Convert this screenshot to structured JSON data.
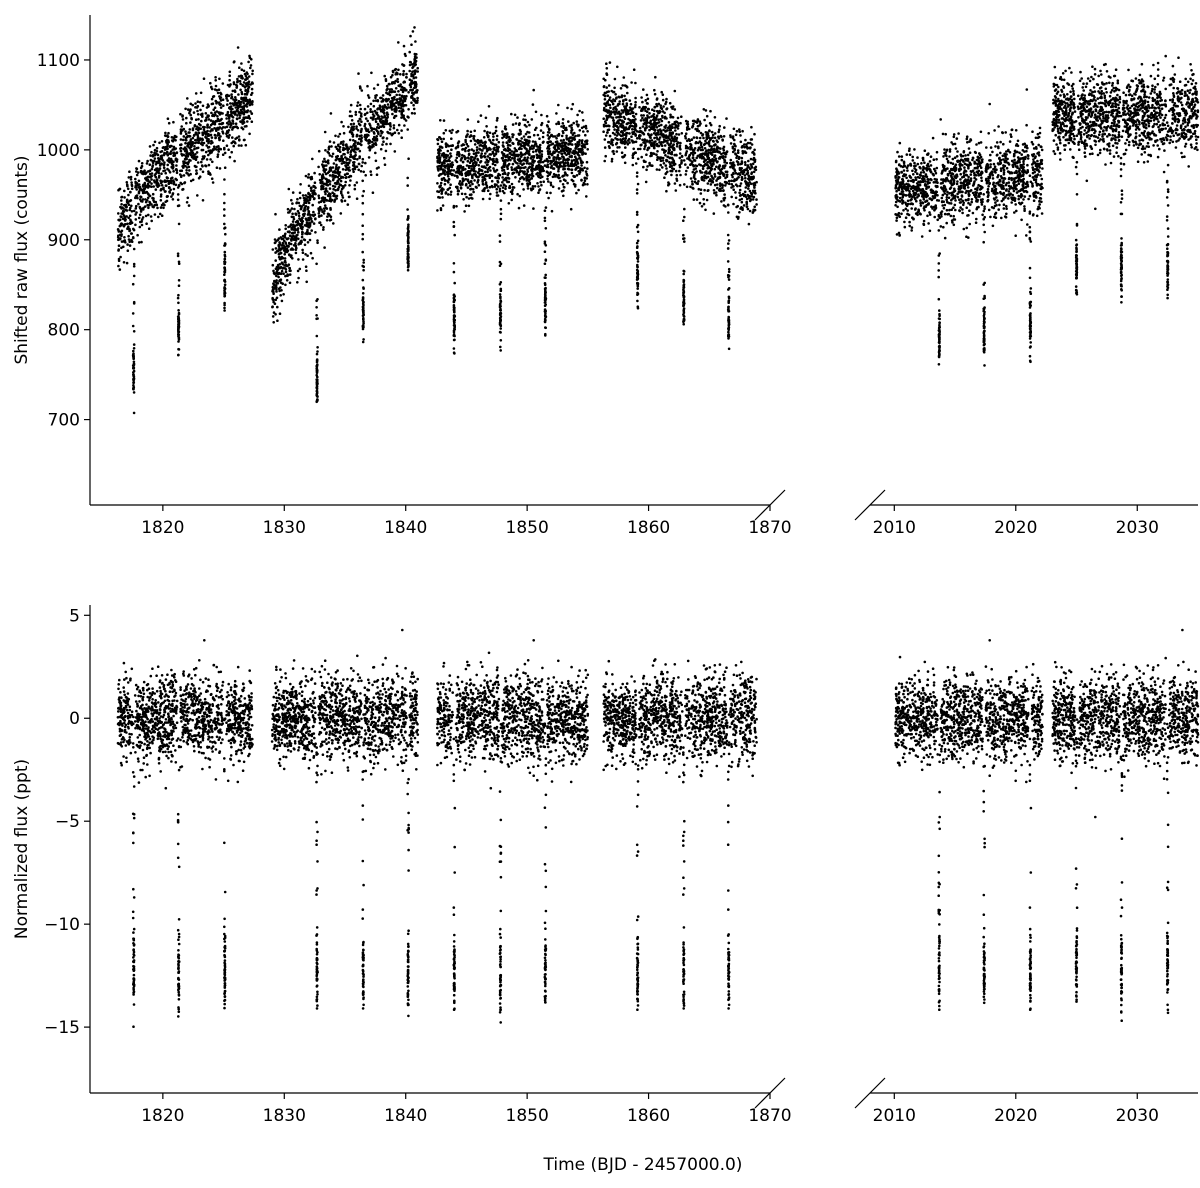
{
  "figure": {
    "xlabel": "Time (BJD - 2457000.0)"
  },
  "chart_data": [
    {
      "type": "scatter",
      "panel": "top",
      "ylabel": "Shifted raw flux (counts)",
      "broken_x_axis": true,
      "xlim_left": [
        1814,
        1870
      ],
      "xlim_right": [
        2008,
        2035
      ],
      "ylim": [
        605,
        1150
      ],
      "xticks_left": [
        1820,
        1830,
        1840,
        1850,
        1860,
        1870
      ],
      "xticks_right": [
        2010,
        2020,
        2030
      ],
      "yticks": [
        700,
        800,
        900,
        1000,
        1100
      ],
      "marker_color": "#000000",
      "segments": [
        {
          "x": [
            1816.3,
            1827.4
          ],
          "y_start": 905,
          "y_end": 1060,
          "scatter": 22
        },
        {
          "x": [
            1829.0,
            1841.0
          ],
          "y_start": 840,
          "y_end": 1080,
          "scatter": 22
        },
        {
          "x": [
            1842.6,
            1855.0
          ],
          "y_start": 978,
          "y_end": 998,
          "scatter": 20
        },
        {
          "x": [
            1856.3,
            1868.9
          ],
          "y_start": 1045,
          "y_end": 965,
          "scatter": 22
        },
        {
          "x": [
            2010.1,
            2022.2
          ],
          "y_start": 955,
          "y_end": 975,
          "scatter": 22
        },
        {
          "x": [
            2023.0,
            2035.0
          ],
          "y_start": 1040,
          "y_end": 1040,
          "scatter": 22
        }
      ],
      "transit_times": [
        1817.6,
        1821.3,
        1825.1,
        1832.7,
        1836.5,
        1840.2,
        1844.0,
        1847.8,
        1851.5,
        1859.1,
        1862.9,
        1866.6,
        2013.7,
        2017.4,
        2021.2,
        2025.0,
        2028.7,
        2032.5
      ],
      "transit_depth": 180
    },
    {
      "type": "scatter",
      "panel": "bottom",
      "ylabel": "Normalized flux (ppt)",
      "broken_x_axis": true,
      "xlim_left": [
        1814,
        1870
      ],
      "xlim_right": [
        2008,
        2035
      ],
      "ylim": [
        -18.2,
        5.5
      ],
      "xticks_left": [
        1820,
        1830,
        1840,
        1850,
        1860,
        1870
      ],
      "xticks_right": [
        2010,
        2020,
        2030
      ],
      "yticks": [
        5,
        0,
        -5,
        -10,
        -15
      ],
      "marker_color": "#000000",
      "segments": [
        {
          "x": [
            1816.3,
            1827.4
          ],
          "y_start": 0,
          "y_end": 0,
          "scatter": 1.0
        },
        {
          "x": [
            1829.0,
            1841.0
          ],
          "y_start": 0,
          "y_end": 0,
          "scatter": 1.0
        },
        {
          "x": [
            1842.6,
            1855.0
          ],
          "y_start": 0,
          "y_end": 0,
          "scatter": 1.0
        },
        {
          "x": [
            1856.3,
            1868.9
          ],
          "y_start": 0,
          "y_end": 0,
          "scatter": 1.0
        },
        {
          "x": [
            2010.1,
            2022.2
          ],
          "y_start": 0,
          "y_end": 0,
          "scatter": 1.0
        },
        {
          "x": [
            2023.0,
            2035.0
          ],
          "y_start": 0,
          "y_end": 0,
          "scatter": 1.0
        }
      ],
      "transit_times": [
        1817.6,
        1821.3,
        1825.1,
        1832.7,
        1836.5,
        1840.2,
        1844.0,
        1847.8,
        1851.5,
        1859.1,
        1862.9,
        1866.6,
        2013.7,
        2017.4,
        2021.2,
        2025.0,
        2028.7,
        2032.5
      ],
      "transit_depth": 13
    }
  ]
}
